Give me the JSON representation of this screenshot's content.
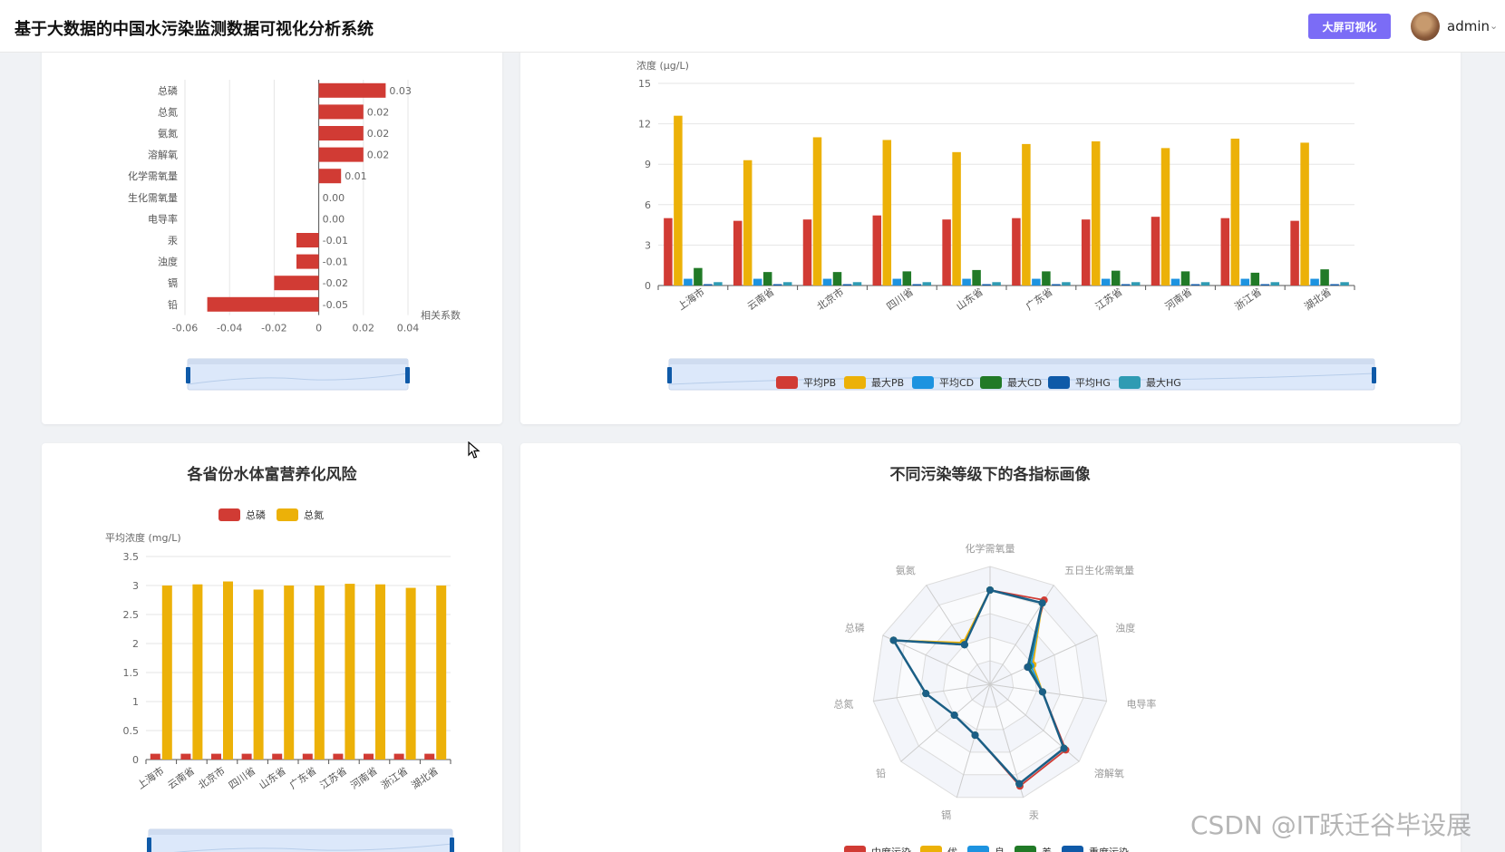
{
  "header": {
    "app_title": "基于大数据的中国水污染监测数据可视化分析系统",
    "bigscreen_label": "大屏可视化",
    "username": "admin"
  },
  "colors": {
    "red": "#d13b34",
    "gold": "#ecb108",
    "blue": "#1d93e0",
    "green": "#217a27",
    "navy": "#0f5aa8",
    "teal": "#2f9bb3",
    "accent": "#7b6cf6"
  },
  "icons": {
    "dropdown": "chevron-down-icon",
    "avatar": "user-avatar-icon"
  },
  "watermark": "CSDN @IT跃迁谷毕设展",
  "chart_data": [
    {
      "type": "bar",
      "orientation": "horizontal",
      "title": "",
      "xlabel": "相关系数",
      "categories": [
        "总磷",
        "总氮",
        "氨氮",
        "溶解氧",
        "化学需氧量",
        "生化需氧量",
        "电导率",
        "汞",
        "浊度",
        "镉",
        "铅"
      ],
      "values": [
        0.03,
        0.02,
        0.02,
        0.02,
        0.01,
        0.0,
        0.0,
        -0.01,
        -0.01,
        -0.02,
        -0.05
      ],
      "value_labels": [
        "0.03",
        "0.02",
        "0.02",
        "0.02",
        "0.01",
        "0.00",
        "0.00",
        "-0.01",
        "-0.01",
        "-0.02",
        "-0.05"
      ],
      "xlim": [
        -0.06,
        0.04
      ],
      "xticks": [
        "-0.06",
        "-0.04",
        "-0.02",
        "0",
        "0.02",
        "0.04"
      ],
      "grid": true
    },
    {
      "type": "bar",
      "title": "",
      "ylabel": "浓度 (μg/L)",
      "categories": [
        "上海市",
        "云南省",
        "北京市",
        "四川省",
        "山东省",
        "广东省",
        "江苏省",
        "河南省",
        "浙江省",
        "湖北省"
      ],
      "series": [
        {
          "name": "平均PB",
          "values": [
            5.0,
            4.8,
            4.9,
            5.2,
            4.9,
            5.0,
            4.9,
            5.1,
            5.0,
            4.8
          ]
        },
        {
          "name": "最大PB",
          "values": [
            12.6,
            9.3,
            11.0,
            10.8,
            9.9,
            10.5,
            10.7,
            10.2,
            10.9,
            10.6
          ]
        },
        {
          "name": "平均CD",
          "values": [
            0.5,
            0.5,
            0.5,
            0.5,
            0.5,
            0.5,
            0.5,
            0.5,
            0.5,
            0.5
          ]
        },
        {
          "name": "最大CD",
          "values": [
            1.3,
            1.0,
            1.0,
            1.05,
            1.15,
            1.05,
            1.1,
            1.05,
            0.95,
            1.2
          ]
        },
        {
          "name": "平均HG",
          "values": [
            0.1,
            0.1,
            0.1,
            0.1,
            0.1,
            0.1,
            0.1,
            0.1,
            0.1,
            0.1
          ]
        },
        {
          "name": "最大HG",
          "values": [
            0.25,
            0.25,
            0.25,
            0.25,
            0.25,
            0.25,
            0.25,
            0.25,
            0.25,
            0.25
          ]
        }
      ],
      "ylim": [
        0,
        15
      ],
      "yticks": [
        "0",
        "3",
        "6",
        "9",
        "12",
        "15"
      ],
      "legend": "bottom",
      "grid": true
    },
    {
      "type": "bar",
      "title": "各省份水体富营养化风险",
      "ylabel": "平均浓度 (mg/L)",
      "categories": [
        "上海市",
        "云南省",
        "北京市",
        "四川省",
        "山东省",
        "广东省",
        "江苏省",
        "河南省",
        "浙江省",
        "湖北省"
      ],
      "series": [
        {
          "name": "总磷",
          "values": [
            0.1,
            0.1,
            0.1,
            0.1,
            0.1,
            0.1,
            0.1,
            0.1,
            0.1,
            0.1
          ]
        },
        {
          "name": "总氮",
          "values": [
            3.0,
            3.02,
            3.07,
            2.93,
            3.0,
            3.0,
            3.03,
            3.02,
            2.96,
            3.0
          ]
        }
      ],
      "ylim": [
        0,
        3.5
      ],
      "yticks": [
        "0",
        "0.5",
        "1",
        "1.5",
        "2",
        "2.5",
        "3",
        "3.5"
      ],
      "legend": "top",
      "grid": true
    },
    {
      "type": "radar",
      "title": "不同污染等级下的各指标画像",
      "indicators": [
        "化学需氧量",
        "五日生化需氧量",
        "浊度",
        "电导率",
        "溶解氧",
        "汞",
        "镉",
        "铅",
        "总氮",
        "总磷",
        "氨氮"
      ],
      "series": [
        {
          "name": "中度污染",
          "values": [
            0.8,
            0.85,
            0.35,
            0.45,
            0.85,
            0.9,
            0.45,
            0.4,
            0.55,
            0.9,
            0.4
          ]
        },
        {
          "name": "优",
          "values": [
            0.8,
            0.82,
            0.4,
            0.45,
            0.83,
            0.88,
            0.45,
            0.4,
            0.55,
            0.9,
            0.42
          ]
        },
        {
          "name": "良",
          "values": [
            0.8,
            0.82,
            0.38,
            0.45,
            0.83,
            0.88,
            0.45,
            0.4,
            0.55,
            0.9,
            0.4
          ]
        },
        {
          "name": "差",
          "values": [
            0.8,
            0.82,
            0.36,
            0.45,
            0.83,
            0.88,
            0.45,
            0.4,
            0.55,
            0.9,
            0.4
          ]
        },
        {
          "name": "重度污染",
          "values": [
            0.8,
            0.82,
            0.35,
            0.45,
            0.83,
            0.88,
            0.45,
            0.4,
            0.55,
            0.9,
            0.4
          ]
        }
      ],
      "legend": "bottom"
    }
  ]
}
